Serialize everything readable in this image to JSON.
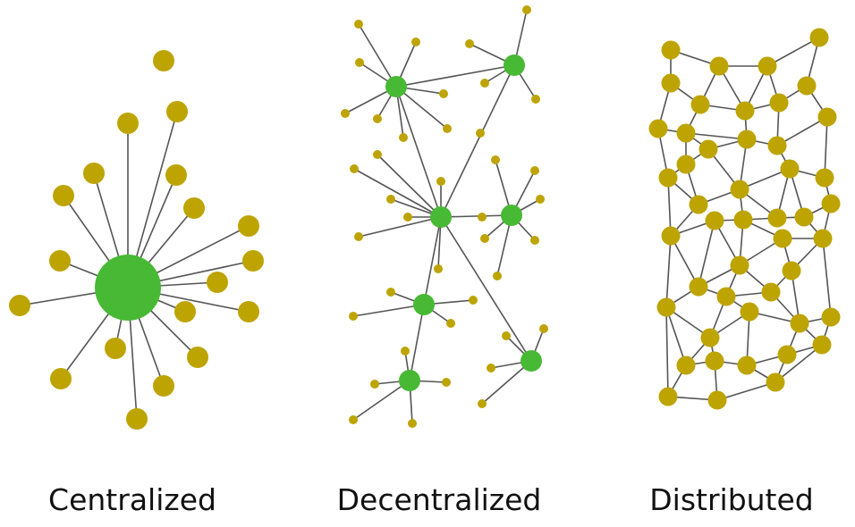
{
  "labels": {
    "centralized": "Centralized",
    "decentralized": "Decentralized",
    "distributed": "Distributed"
  },
  "colors": {
    "hub_node": "#48b935",
    "peer_node": "#bda400",
    "edge": "#555555"
  }
}
